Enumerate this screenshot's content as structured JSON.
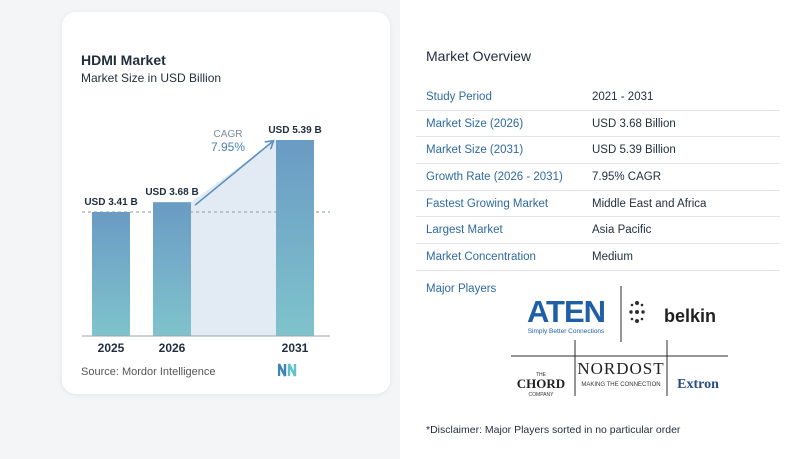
{
  "chart_data": {
    "type": "bar",
    "title": "HDMI Market",
    "subtitle": "Market Size in USD Billion",
    "categories": [
      "2025",
      "2026",
      "2031"
    ],
    "values": [
      3.41,
      3.68,
      5.39
    ],
    "value_labels": [
      "USD 3.41 B",
      "USD 3.68 B",
      "USD 5.39 B"
    ],
    "cagr_label": "CAGR",
    "cagr_value": "7.95%",
    "ylim": [
      0,
      5.39
    ],
    "colors": {
      "bar_top": "#6a9bc4",
      "bar_bottom": "#7fc3cc",
      "arrow": "#5a8fc0",
      "band": "#dde8f1"
    }
  },
  "source": "Source:  Mordor Intelligence",
  "overview": {
    "title": "Market Overview",
    "rows": [
      {
        "key": "Study Period",
        "value": "2021 - 2031"
      },
      {
        "key": "Market Size (2026)",
        "value": "USD 3.68 Billion"
      },
      {
        "key": "Market Size (2031)",
        "value": "USD 5.39 Billion"
      },
      {
        "key": "Growth Rate (2026 - 2031)",
        "value": "7.95% CAGR"
      },
      {
        "key": "Fastest Growing Market",
        "value": "Middle East and Africa"
      },
      {
        "key": "Largest Market",
        "value": "Asia Pacific"
      },
      {
        "key": "Market Concentration",
        "value": "Medium"
      }
    ],
    "players_label": "Major Players",
    "players": {
      "aten": "ATEN",
      "aten_tagline": "Simply Better Connections",
      "belkin": "belkin",
      "chord_the": "THE",
      "chord": "CHORD",
      "chord_company": "COMPANY",
      "nordost": "NORDOST",
      "nordost_tagline": "MAKING THE CONNECTION",
      "extron": "Extron"
    }
  },
  "disclaimer": "*Disclaimer: Major Players sorted in no particular order"
}
